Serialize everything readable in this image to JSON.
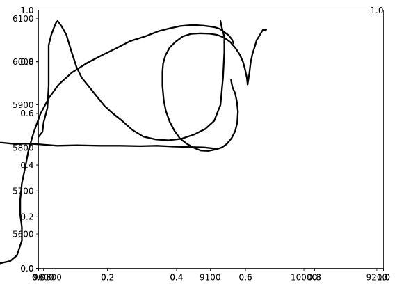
{
  "chart_data": {
    "type": "line",
    "title": "",
    "xlabel": "",
    "ylabel": "",
    "grid": false,
    "legend": "none",
    "overlay_axes": [
      {
        "name": "base",
        "xlim": [
          0.0,
          1.0
        ],
        "ylim": [
          0.0,
          1.0
        ],
        "xticks": [
          0.0,
          0.2,
          0.4,
          0.6,
          0.8,
          1.0
        ],
        "xticklabels": [
          "0.0",
          "0.2",
          "0.4",
          "0.6",
          "0.8",
          "1.0"
        ],
        "yticks": [
          0.0,
          0.2,
          0.4,
          0.6,
          0.8,
          1.0
        ],
        "yticklabels": [
          "0.0",
          "0.2",
          "0.4",
          "0.6",
          "0.8",
          "1.0"
        ]
      },
      {
        "name": "letter-f",
        "xlim": [
          8997,
          9204
        ],
        "ylim": [
          5520,
          6120
        ],
        "xticks": [
          9000,
          9100,
          9200
        ],
        "xticklabels": [
          "9000",
          "9100",
          "9200"
        ],
        "yticks": [
          5600,
          5700,
          5800,
          5900,
          6000,
          6100
        ],
        "yticklabels": [
          "5600",
          "5700",
          "5800",
          "5900",
          "6000",
          "6100"
        ]
      },
      {
        "name": "letter-o",
        "xlim": [
          0.0,
          1.0
        ],
        "ylim": [
          0.0,
          1.0
        ],
        "xticks": [
          0.0,
          0.2,
          0.4,
          0.6,
          0.8,
          1.0
        ],
        "xticklabels": [
          "0.0",
          "0.2",
          "0.4",
          "0.6",
          "0.8",
          "1.0"
        ],
        "yticks": [
          0.0,
          0.2,
          0.4,
          0.6,
          0.8,
          1.0
        ],
        "yticklabels": [
          "0.0",
          "0.2",
          "0.4",
          "0.6",
          "0.8",
          "1.0"
        ]
      },
      {
        "name": "letter-u",
        "xlim": [
          9790,
          10063
        ],
        "ylim": [
          0.0,
          1.0
        ],
        "xticks": [
          9800,
          10000
        ],
        "xticklabels": [
          "9800",
          "10000"
        ],
        "yticks": [],
        "yticklabels": []
      }
    ],
    "series": [
      {
        "name": "f-stem",
        "axes": 1,
        "x": [
          8972,
          8980,
          8984,
          8987,
          8987,
          8986,
          8986,
          8987,
          8989,
          8991,
          8994,
          8998,
          9003,
          9009,
          9017,
          9026,
          9035,
          9044,
          9052,
          9061,
          9069,
          9076,
          9082,
          9088,
          9092,
          9096,
          9100,
          9103,
          9106,
          9108,
          9111,
          9113,
          9114
        ],
        "y": [
          5530,
          5537,
          5550,
          5585,
          5615,
          5645,
          5680,
          5718,
          5755,
          5795,
          5835,
          5878,
          5915,
          5947,
          5975,
          5997,
          6015,
          6032,
          6048,
          6059,
          6071,
          6078,
          6083,
          6085,
          6085,
          6084,
          6082,
          6080,
          6076,
          6070,
          6062,
          6052,
          6043
        ]
      },
      {
        "name": "f-crossbar",
        "axes": 1,
        "x": [
          8955,
          8962,
          8956,
          8963,
          8975,
          8983,
          8990,
          8998,
          9008,
          9020,
          9034,
          9046,
          9058,
          9068,
          9078,
          9086,
          9096,
          9104
        ],
        "y": [
          5817,
          5822,
          5814,
          5812,
          5812,
          5809,
          5810,
          5808,
          5805,
          5806,
          5805,
          5805,
          5804,
          5805,
          5803,
          5802,
          5801,
          5798
        ]
      },
      {
        "name": "o-loop",
        "axes": 2,
        "x": [
          0.558,
          0.562,
          0.57,
          0.575,
          0.578,
          0.576,
          0.57,
          0.56,
          0.546,
          0.531,
          0.515,
          0.493,
          0.471,
          0.45,
          0.429,
          0.41,
          0.394,
          0.38,
          0.369,
          0.363,
          0.359,
          0.359,
          0.361,
          0.368,
          0.38,
          0.397,
          0.418,
          0.442,
          0.469,
          0.495,
          0.518,
          0.539,
          0.556,
          0.571,
          0.584,
          0.593,
          0.599,
          0.604,
          0.606
        ],
        "y": [
          0.729,
          0.702,
          0.678,
          0.645,
          0.607,
          0.564,
          0.531,
          0.505,
          0.482,
          0.468,
          0.461,
          0.455,
          0.456,
          0.467,
          0.483,
          0.503,
          0.533,
          0.568,
          0.61,
          0.651,
          0.707,
          0.761,
          0.793,
          0.825,
          0.855,
          0.877,
          0.898,
          0.908,
          0.91,
          0.909,
          0.904,
          0.893,
          0.876,
          0.853,
          0.826,
          0.799,
          0.769,
          0.737,
          0.712
        ]
      },
      {
        "name": "o-tail",
        "axes": 2,
        "x": [
          0.606,
          0.611,
          0.615,
          0.62,
          0.627,
          0.632,
          0.64,
          0.65,
          0.66
        ],
        "y": [
          0.712,
          0.755,
          0.797,
          0.83,
          0.859,
          0.883,
          0.9,
          0.923,
          0.924
        ]
      },
      {
        "name": "u-stroke",
        "axes": 3,
        "x": [
          9790,
          9793,
          9794,
          9797,
          9798,
          9798,
          9800,
          9802,
          9804,
          9805,
          9808,
          9812,
          9816,
          9820,
          9824,
          9830,
          9836,
          9842,
          9849,
          9856,
          9864,
          9873,
          9883,
          9893,
          9903,
          9913,
          9922,
          9929,
          9934,
          9936,
          9937,
          9937,
          9935,
          9934
        ],
        "y": [
          0.51,
          0.528,
          0.566,
          0.621,
          0.707,
          0.864,
          0.904,
          0.93,
          0.953,
          0.958,
          0.939,
          0.904,
          0.84,
          0.78,
          0.739,
          0.703,
          0.666,
          0.63,
          0.599,
          0.572,
          0.537,
          0.51,
          0.499,
          0.496,
          0.502,
          0.518,
          0.54,
          0.571,
          0.633,
          0.741,
          0.837,
          0.897,
          0.934,
          0.958
        ]
      }
    ]
  }
}
